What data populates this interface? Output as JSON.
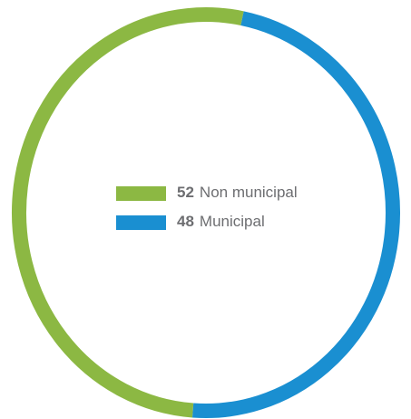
{
  "chart_data": {
    "type": "donut",
    "categories": [
      "Non municipal",
      "Municipal"
    ],
    "values": [
      52,
      48
    ],
    "colors": [
      "#8cb843",
      "#1a8fd1"
    ]
  }
}
